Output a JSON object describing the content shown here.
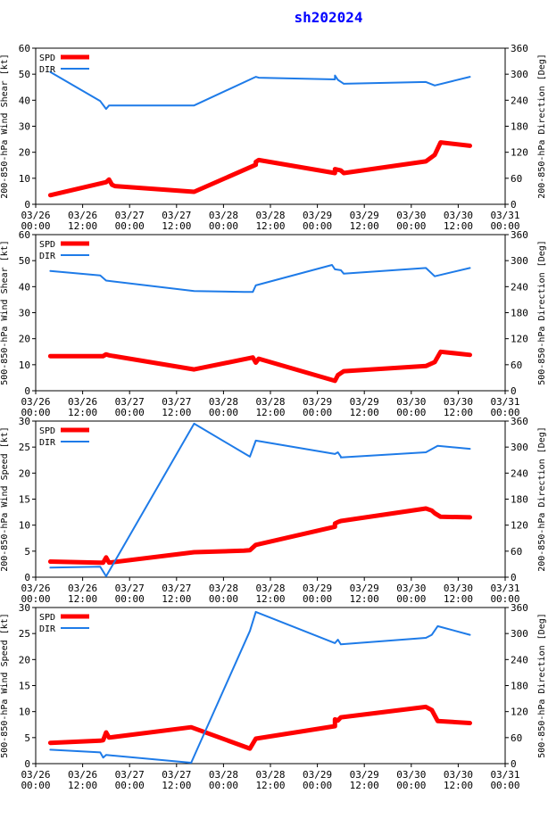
{
  "title": "sh202024",
  "colors": {
    "title": "#0000ff",
    "spd": "#ff0000",
    "dir": "#1e7be8",
    "axis": "#000000"
  },
  "x_ticks": [
    {
      "day": "03/26",
      "time": "00:00"
    },
    {
      "day": "03/26",
      "time": "12:00"
    },
    {
      "day": "03/27",
      "time": "00:00"
    },
    {
      "day": "03/27",
      "time": "12:00"
    },
    {
      "day": "03/28",
      "time": "00:00"
    },
    {
      "day": "03/28",
      "time": "12:00"
    },
    {
      "day": "03/29",
      "time": "00:00"
    },
    {
      "day": "03/29",
      "time": "12:00"
    },
    {
      "day": "03/30",
      "time": "00:00"
    },
    {
      "day": "03/30",
      "time": "12:00"
    },
    {
      "day": "03/31",
      "time": "00:00"
    }
  ],
  "chart_data": [
    {
      "type": "line",
      "ylabel": "200-850-hPa Wind Shear [kt]",
      "y2label": "200-850-hPa Direction [Deg]",
      "ylim": [
        0,
        60
      ],
      "yticks": [
        0,
        10,
        20,
        30,
        40,
        50,
        60
      ],
      "y2lim": [
        0,
        360
      ],
      "y2ticks": [
        0,
        60,
        120,
        180,
        240,
        300,
        360
      ],
      "xlim_hours": [
        0,
        120
      ],
      "legend": [
        "SPD",
        "DIR"
      ],
      "series": [
        {
          "name": "SPD",
          "axis": "left",
          "x": [
            3.75,
            18,
            18.75,
            19.5,
            20.25,
            40.5,
            56.25,
            56.25,
            57,
            76.5,
            76.5,
            78,
            78.75,
            99.75,
            102,
            103.5,
            111
          ],
          "y": [
            3.5,
            8.5,
            9.5,
            7.5,
            7,
            4.8,
            15.2,
            16.3,
            17,
            12,
            13.5,
            13,
            12,
            16.5,
            19,
            23.8,
            22.5
          ]
        },
        {
          "name": "DIR",
          "axis": "right",
          "x": [
            3.75,
            16.5,
            18,
            18.75,
            40.5,
            56.25,
            57,
            76.5,
            76.5,
            77.25,
            78.75,
            99.75,
            102,
            111
          ],
          "y": [
            305,
            238,
            220,
            228,
            228,
            294,
            292,
            288,
            297,
            287,
            278,
            282,
            274,
            294
          ]
        }
      ]
    },
    {
      "type": "line",
      "ylabel": "500-850-hPa Wind Shear [kt]",
      "y2label": "500-850-hPa Direction [Deg]",
      "ylim": [
        0,
        60
      ],
      "yticks": [
        0,
        10,
        20,
        30,
        40,
        50,
        60
      ],
      "y2lim": [
        0,
        360
      ],
      "y2ticks": [
        0,
        60,
        120,
        180,
        240,
        300,
        360
      ],
      "xlim_hours": [
        0,
        120
      ],
      "legend": [
        "SPD",
        "DIR"
      ],
      "series": [
        {
          "name": "SPD",
          "axis": "left",
          "x": [
            3.75,
            17.25,
            18,
            18.75,
            40.5,
            55.5,
            56.25,
            57,
            76.5,
            77.25,
            78.75,
            99.75,
            102,
            103.5,
            111
          ],
          "y": [
            13.3,
            13.3,
            14,
            13.6,
            8.2,
            12.8,
            10.8,
            12.3,
            3.8,
            6,
            7.5,
            9.5,
            11,
            15,
            13.8
          ]
        },
        {
          "name": "DIR",
          "axis": "right",
          "x": [
            3.75,
            16.5,
            18,
            40.5,
            53.25,
            55.5,
            56.25,
            75.75,
            76.5,
            78,
            78.75,
            99.75,
            102,
            111
          ],
          "y": [
            276,
            266,
            254,
            230,
            228,
            228,
            243,
            290,
            280,
            278,
            270,
            283,
            264,
            283
          ]
        }
      ]
    },
    {
      "type": "line",
      "ylabel": "200-850-hPa Wind Speed [kt]",
      "y2label": "200-850-hPa Direction [Deg]",
      "ylim": [
        0,
        30
      ],
      "yticks": [
        0,
        5,
        10,
        15,
        20,
        25,
        30
      ],
      "y2lim": [
        0,
        360
      ],
      "y2ticks": [
        0,
        60,
        120,
        180,
        240,
        300,
        360
      ],
      "xlim_hours": [
        0,
        120
      ],
      "legend": [
        "SPD",
        "DIR"
      ],
      "series": [
        {
          "name": "SPD",
          "axis": "left",
          "x": [
            3.75,
            16.5,
            17.25,
            18,
            18.75,
            40.5,
            53.25,
            54.75,
            56.25,
            76.5,
            76.5,
            77.25,
            78,
            99.75,
            101.25,
            102,
            103.5,
            111
          ],
          "y": [
            3,
            2.8,
            2.8,
            3.8,
            2.8,
            4.8,
            5.1,
            5.2,
            6.2,
            9.7,
            10.3,
            10.6,
            10.8,
            13.2,
            12.8,
            12.3,
            11.6,
            11.5
          ]
        },
        {
          "name": "DIR",
          "axis": "right",
          "x": [
            3.75,
            16.5,
            18,
            40.5,
            54.75,
            56.25,
            76.5,
            77.25,
            78,
            78,
            99.75,
            102.75,
            111
          ],
          "y": [
            22,
            24,
            2,
            354,
            278,
            315,
            284,
            288,
            278,
            276,
            288,
            303,
            296
          ]
        }
      ]
    },
    {
      "type": "line",
      "ylabel": "500-850-hPa Wind Speed [kt]",
      "y2label": "500-850-hPa Direction [Deg]",
      "ylim": [
        0,
        30
      ],
      "yticks": [
        0,
        5,
        10,
        15,
        20,
        25,
        30
      ],
      "y2lim": [
        0,
        360
      ],
      "y2ticks": [
        0,
        60,
        120,
        180,
        240,
        300,
        360
      ],
      "xlim_hours": [
        0,
        120
      ],
      "legend": [
        "SPD",
        "DIR"
      ],
      "series": [
        {
          "name": "SPD",
          "axis": "left",
          "x": [
            3.75,
            16.5,
            17.25,
            18,
            18.75,
            39.75,
            54.75,
            56.25,
            76.5,
            76.5,
            77.25,
            78,
            99.75,
            101.25,
            102.75,
            111
          ],
          "y": [
            4,
            4.4,
            4.5,
            6,
            5,
            7,
            2.9,
            4.8,
            7.2,
            8.5,
            8.3,
            8.9,
            10.9,
            10.3,
            8.2,
            7.8
          ]
        },
        {
          "name": "DIR",
          "axis": "right",
          "x": [
            3.75,
            16.5,
            17.25,
            18,
            39.75,
            54.75,
            56.25,
            76.5,
            77.25,
            78,
            99.75,
            101.25,
            102.75,
            111
          ],
          "y": [
            32,
            26,
            14,
            20,
            2,
            306,
            350,
            278,
            286,
            275,
            290,
            297,
            317,
            297
          ]
        }
      ]
    }
  ]
}
